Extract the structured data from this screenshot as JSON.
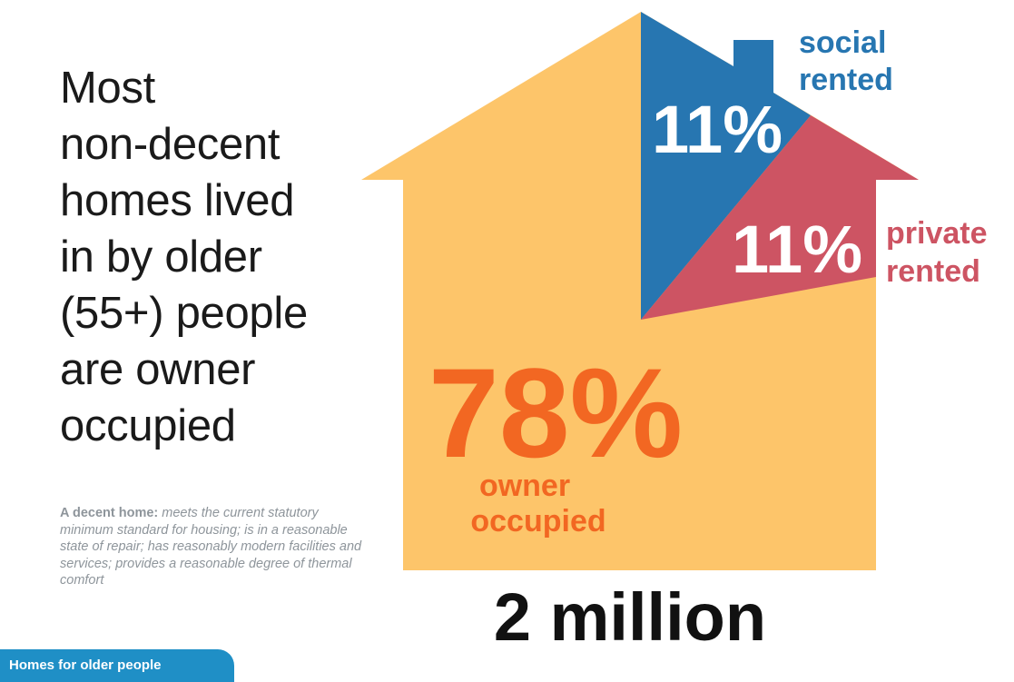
{
  "headline": {
    "lines": [
      "Most",
      "non-decent",
      "homes lived",
      "in by older",
      "(55+) people",
      "are owner",
      "occupied"
    ]
  },
  "definition": {
    "term": "A decent home:",
    "description": "meets the current statutory minimum standard for housing; is in a reasonable state of repair; has reasonably modern facilities and services; provides a reasonable degree of thermal comfort"
  },
  "footer": {
    "label": "Homes for older people"
  },
  "colors": {
    "owner": "#fdc56a",
    "social": "#2776b1",
    "private": "#cd5463",
    "owner_text": "#f26722",
    "headline": "#1a1a1a",
    "definition": "#8e959b",
    "tab": "#1f8fc6"
  },
  "chart_data": {
    "type": "pie",
    "categories": [
      "owner occupied",
      "social rented",
      "private rented"
    ],
    "values": [
      78,
      11,
      11
    ],
    "value_labels": [
      "78%",
      "11%",
      "11%"
    ],
    "category_label_lines": [
      [
        "owner",
        "occupied"
      ],
      [
        "social",
        "rented"
      ],
      [
        "private",
        "rented"
      ]
    ],
    "total": "2 million",
    "legend": "inline labels"
  }
}
